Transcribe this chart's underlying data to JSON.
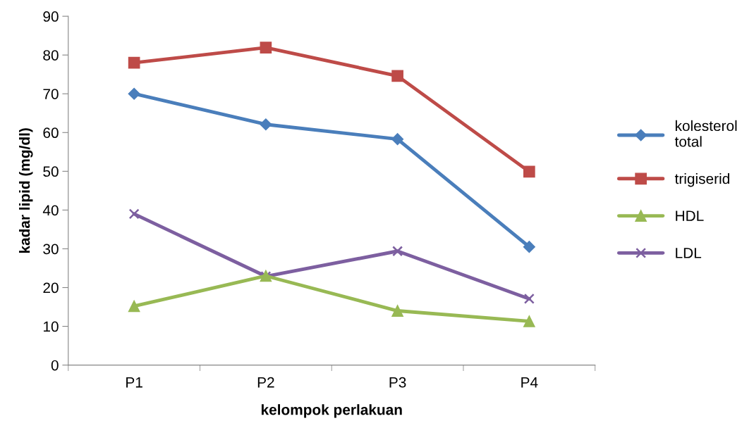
{
  "chart_data": {
    "type": "line",
    "xlabel": "kelompok perlakuan",
    "ylabel": "kadar lipid (mg/dl)",
    "categories": [
      "P1",
      "P2",
      "P3",
      "P4"
    ],
    "ylim": [
      0,
      90
    ],
    "yticks": [
      0,
      10,
      20,
      30,
      40,
      50,
      60,
      70,
      80,
      90
    ],
    "grid": false,
    "legend": "right",
    "line_style": "solid",
    "series": [
      {
        "name": "kolesterol\ntotal",
        "color": "#4a7ebb",
        "marker": "diamond",
        "values": [
          70.0,
          62.1,
          58.3,
          30.5
        ]
      },
      {
        "name": "trigiserid",
        "color": "#be4b48",
        "marker": "square",
        "values": [
          78.0,
          81.9,
          74.6,
          49.9
        ]
      },
      {
        "name": "HDL",
        "color": "#98b954",
        "marker": "triangle",
        "values": [
          15.2,
          23.0,
          14.0,
          11.3
        ]
      },
      {
        "name": "LDL",
        "color": "#7d5fa0",
        "marker": "cross",
        "values": [
          39.0,
          22.9,
          29.4,
          17.1
        ]
      }
    ]
  }
}
